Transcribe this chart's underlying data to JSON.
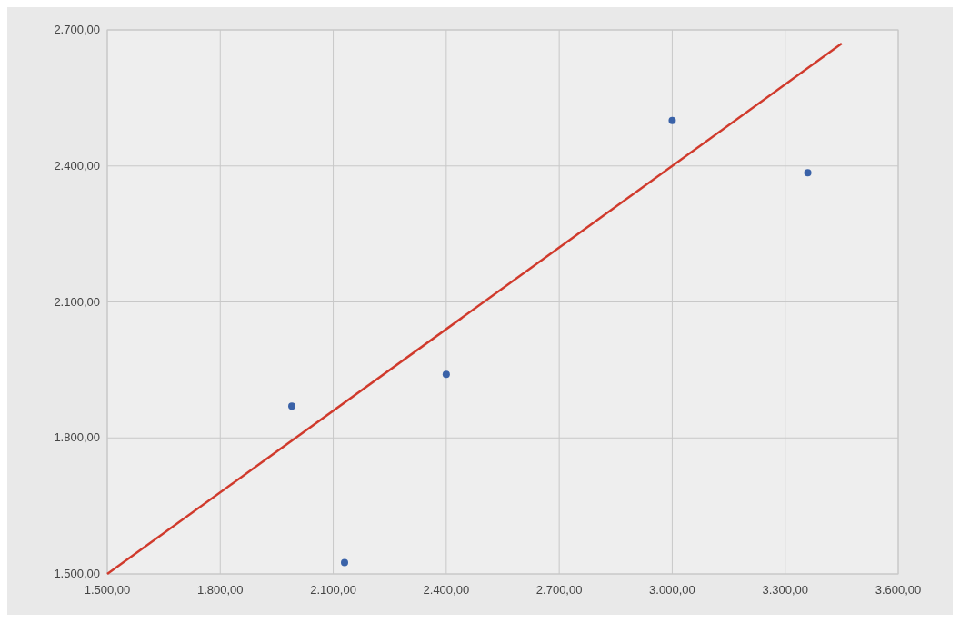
{
  "chart_data": {
    "type": "scatter",
    "series": [
      {
        "marker": "circle",
        "color": "#3a62a8",
        "x": [
          1990,
          2130,
          2400,
          3000,
          3360
        ],
        "values": [
          1870,
          1525,
          1940,
          2500,
          2385
        ]
      },
      {
        "type": "line",
        "color": "#d03a2c",
        "x": [
          1500,
          3450
        ],
        "values": [
          1500,
          2670
        ]
      }
    ],
    "xlim": [
      1500,
      3600
    ],
    "ylim": [
      1500,
      2700
    ],
    "xticks": [
      {
        "value": 1500,
        "label": "1.500,00"
      },
      {
        "value": 1800,
        "label": "1.800,00"
      },
      {
        "value": 2100,
        "label": "2.100,00"
      },
      {
        "value": 2400,
        "label": "2.400,00"
      },
      {
        "value": 2700,
        "label": "2.700,00"
      },
      {
        "value": 3000,
        "label": "3.000,00"
      },
      {
        "value": 3300,
        "label": "3.300,00"
      },
      {
        "value": 3600,
        "label": "3.600,00"
      }
    ],
    "yticks": [
      {
        "value": 1500,
        "label": "1.500,00"
      },
      {
        "value": 1800,
        "label": "1.800,00"
      },
      {
        "value": 2100,
        "label": "2.100,00"
      },
      {
        "value": 2400,
        "label": "2.400,00"
      },
      {
        "value": 2700,
        "label": "2.700,00"
      }
    ],
    "grid": true
  }
}
